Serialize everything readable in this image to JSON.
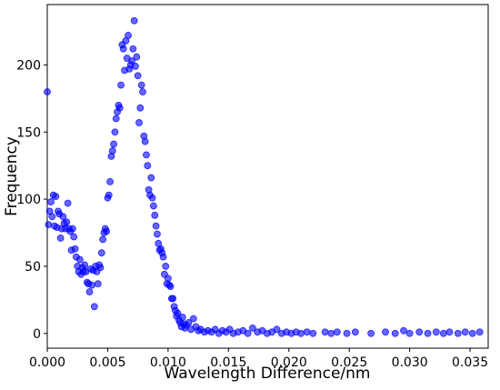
{
  "chart_data": {
    "type": "scatter",
    "x_label": "Wavelength Difference/nm",
    "y_label": "Frequency",
    "color": "#0000ff",
    "x": [
      0.0,
      0.0001,
      0.0002,
      0.0003,
      0.0004,
      0.0005,
      0.0006,
      0.0007,
      0.0008,
      0.0009,
      0.001,
      0.0011,
      0.0012,
      0.0013,
      0.0014,
      0.0015,
      0.0016,
      0.0017,
      0.0018,
      0.0019,
      0.002,
      0.0021,
      0.0022,
      0.0023,
      0.0024,
      0.0025,
      0.0026,
      0.0027,
      0.0028,
      0.0029,
      0.003,
      0.0031,
      0.0032,
      0.0033,
      0.0034,
      0.0035,
      0.0036,
      0.0037,
      0.0038,
      0.0039,
      0.004,
      0.0041,
      0.0042,
      0.0043,
      0.0044,
      0.0045,
      0.0046,
      0.0047,
      0.0048,
      0.0049,
      0.005,
      0.0051,
      0.0052,
      0.0053,
      0.0054,
      0.0055,
      0.0056,
      0.0057,
      0.0058,
      0.0059,
      0.006,
      0.0061,
      0.0062,
      0.0063,
      0.0064,
      0.0065,
      0.0066,
      0.0067,
      0.0068,
      0.0069,
      0.007,
      0.0071,
      0.0072,
      0.0073,
      0.0074,
      0.0075,
      0.0076,
      0.0077,
      0.0078,
      0.0079,
      0.008,
      0.0081,
      0.0082,
      0.0083,
      0.0084,
      0.0085,
      0.0086,
      0.0087,
      0.0088,
      0.0089,
      0.009,
      0.0091,
      0.0092,
      0.0093,
      0.0094,
      0.0095,
      0.0096,
      0.0097,
      0.0098,
      0.0099,
      0.01,
      0.0101,
      0.0102,
      0.0103,
      0.0104,
      0.0105,
      0.0106,
      0.0107,
      0.0108,
      0.0109,
      0.011,
      0.0111,
      0.0112,
      0.0113,
      0.0114,
      0.0115,
      0.0117,
      0.0119,
      0.0121,
      0.0123,
      0.0125,
      0.0127,
      0.013,
      0.0133,
      0.0136,
      0.0139,
      0.0142,
      0.0145,
      0.0148,
      0.0151,
      0.0154,
      0.0158,
      0.0162,
      0.0166,
      0.017,
      0.0174,
      0.0178,
      0.0182,
      0.0186,
      0.019,
      0.0194,
      0.0198,
      0.0202,
      0.0206,
      0.021,
      0.0215,
      0.022,
      0.023,
      0.0235,
      0.024,
      0.0248,
      0.0255,
      0.0268,
      0.028,
      0.0288,
      0.0295,
      0.03,
      0.0308,
      0.0315,
      0.0322,
      0.0328,
      0.0333,
      0.034,
      0.0346,
      0.0352,
      0.0358
    ],
    "values": [
      180,
      81,
      91,
      98,
      87,
      103,
      80,
      102,
      79,
      91,
      89,
      71,
      78,
      87,
      82,
      78,
      83,
      97,
      78,
      76,
      62,
      78,
      72,
      63,
      57,
      50,
      46,
      55,
      44,
      49,
      46,
      51,
      46,
      38,
      37,
      31,
      48,
      36,
      47,
      20,
      50,
      46,
      37,
      51,
      49,
      60,
      70,
      75,
      78,
      76,
      101,
      103,
      113,
      132,
      136,
      141,
      150,
      160,
      165,
      170,
      168,
      185,
      215,
      212,
      196,
      218,
      205,
      222,
      197,
      200,
      203,
      212,
      233,
      199,
      206,
      192,
      157,
      168,
      185,
      180,
      147,
      143,
      133,
      125,
      107,
      103,
      116,
      101,
      95,
      88,
      80,
      74,
      67,
      62,
      63,
      60,
      57,
      44,
      50,
      37,
      41,
      36,
      35,
      26,
      26,
      20,
      17,
      13,
      15,
      10,
      8,
      5,
      12,
      7,
      4,
      6,
      8,
      3,
      11,
      5,
      2,
      3,
      1,
      2,
      1,
      3,
      0,
      2,
      1,
      3,
      0,
      1,
      2,
      0,
      4,
      1,
      2,
      0,
      1,
      3,
      0,
      1,
      0,
      1,
      0,
      1,
      0,
      1,
      0,
      1,
      0,
      1,
      0,
      1,
      0,
      2,
      0,
      1,
      0,
      1,
      0,
      1,
      0,
      1,
      0,
      1
    ],
    "xlim": [
      0,
      0.0365
    ],
    "ylim": [
      -11,
      245
    ],
    "xticks": [
      {
        "value": 0,
        "label": "0.000"
      },
      {
        "value": 0.005,
        "label": "0.005"
      },
      {
        "value": 0.01,
        "label": "0.010"
      },
      {
        "value": 0.015,
        "label": "0.015"
      },
      {
        "value": 0.02,
        "label": "0.020"
      },
      {
        "value": 0.025,
        "label": "0.025"
      },
      {
        "value": 0.03,
        "label": "0.030"
      },
      {
        "value": 0.035,
        "label": "0.035"
      }
    ],
    "yticks": [
      0,
      50,
      100,
      150,
      200
    ]
  }
}
